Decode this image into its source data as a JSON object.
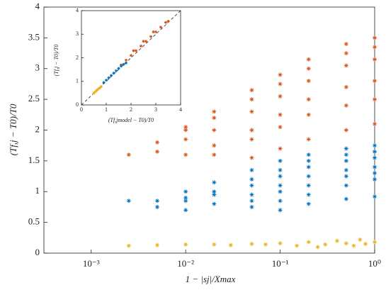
{
  "chart_data": [
    {
      "type": "scatter",
      "xscale": "log",
      "xlabel": "1 − |sj|/Xmax",
      "ylabel": "(Tf,j − T0)/T0",
      "xlim": [
        0.000316,
        1
      ],
      "ylim": [
        0,
        4
      ],
      "xticks": [
        {
          "value": 0.001,
          "label": "10⁻³"
        },
        {
          "value": 0.01,
          "label": "10⁻²"
        },
        {
          "value": 0.1,
          "label": "10⁻¹"
        },
        {
          "value": 1,
          "label": "10⁰"
        }
      ],
      "yticks": [
        0,
        0.5,
        1,
        1.5,
        2,
        2.5,
        3,
        3.5,
        4
      ],
      "series": [
        {
          "color": "#d95319",
          "x": [
            0.01,
            0.02,
            0.05,
            0.1,
            0.2,
            0.5,
            1,
            0.005,
            0.01,
            0.02,
            0.05,
            0.1,
            0.2,
            0.5,
            1,
            0.0025,
            0.005,
            0.01,
            0.02,
            0.05,
            0.1,
            0.2,
            0.5,
            1,
            0.01,
            0.02,
            0.05,
            0.1,
            0.2,
            0.5,
            1,
            0.02,
            0.05,
            0.1,
            0.2,
            0.5,
            1,
            0.05,
            0.1,
            0.2,
            0.5,
            1
          ],
          "values": [
            2.05,
            2.3,
            2.65,
            2.9,
            3.15,
            3.4,
            3.5,
            1.8,
            2.0,
            2.2,
            2.5,
            2.75,
            3.0,
            3.25,
            3.35,
            1.6,
            1.65,
            1.85,
            2.0,
            2.3,
            2.55,
            2.8,
            3.05,
            3.15,
            1.6,
            1.75,
            2.0,
            2.25,
            2.5,
            2.7,
            2.8,
            1.6,
            1.85,
            2.05,
            2.25,
            2.4,
            2.5,
            1.55,
            1.7,
            1.85,
            2.0,
            2.1
          ]
        },
        {
          "color": "#0072bd",
          "x": [
            0.0025,
            0.005,
            0.01,
            0.02,
            0.05,
            0.1,
            0.2,
            0.5,
            1,
            0.01,
            0.02,
            0.05,
            0.1,
            0.2,
            0.5,
            1,
            0.005,
            0.01,
            0.02,
            0.05,
            0.1,
            0.2,
            0.5,
            1,
            0.02,
            0.05,
            0.1,
            0.2,
            0.5,
            1,
            0.01,
            0.05,
            0.1,
            0.2,
            0.5,
            1,
            0.05,
            0.1,
            0.2,
            0.5,
            1,
            0.1,
            0.2,
            0.5,
            1
          ],
          "values": [
            0.85,
            0.85,
            1.0,
            1.15,
            1.35,
            1.5,
            1.6,
            1.7,
            1.75,
            0.9,
            1.0,
            1.2,
            1.35,
            1.5,
            1.6,
            1.65,
            0.75,
            0.85,
            0.95,
            1.1,
            1.25,
            1.4,
            1.5,
            1.55,
            0.8,
            0.95,
            1.1,
            1.25,
            1.35,
            1.4,
            0.7,
            0.85,
            1.0,
            1.1,
            1.25,
            1.3,
            0.75,
            0.85,
            0.95,
            1.1,
            1.2,
            0.7,
            0.8,
            0.88,
            0.92
          ]
        },
        {
          "color": "#edb120",
          "x": [
            0.0025,
            0.005,
            0.01,
            0.02,
            0.03,
            0.05,
            0.07,
            0.1,
            0.15,
            0.2,
            0.3,
            0.4,
            0.5,
            0.7,
            1,
            0.25,
            0.6,
            0.8
          ],
          "values": [
            0.12,
            0.13,
            0.14,
            0.14,
            0.13,
            0.15,
            0.14,
            0.16,
            0.12,
            0.18,
            0.14,
            0.2,
            0.16,
            0.22,
            0.18,
            0.1,
            0.12,
            0.15
          ]
        }
      ]
    },
    {
      "type": "scatter",
      "xscale": "linear",
      "xlabel": "(Tf,jmodel − T0)/T0",
      "ylabel": "(Tf,j − T0)/T0",
      "xlim": [
        0,
        4
      ],
      "ylim": [
        0,
        4
      ],
      "xticks": [
        0,
        1,
        2,
        3,
        4
      ],
      "yticks": [
        0,
        1,
        2,
        3,
        4
      ],
      "series": [
        {
          "color": "#d95319",
          "x": [
            1.6,
            1.8,
            2.0,
            2.2,
            2.4,
            2.6,
            2.8,
            3.0,
            3.2,
            3.4,
            3.5,
            2.1,
            2.5,
            2.9
          ],
          "values": [
            1.7,
            1.9,
            2.1,
            2.3,
            2.5,
            2.7,
            2.9,
            3.1,
            3.3,
            3.5,
            3.55,
            2.3,
            2.7,
            3.1
          ]
        },
        {
          "color": "#0072bd",
          "x": [
            0.9,
            1.0,
            1.1,
            1.2,
            1.3,
            1.4,
            1.5,
            1.6,
            1.7,
            1.8
          ],
          "values": [
            0.95,
            1.05,
            1.15,
            1.25,
            1.35,
            1.45,
            1.55,
            1.65,
            1.72,
            1.78
          ]
        },
        {
          "color": "#edb120",
          "x": [
            0.5,
            0.55,
            0.6,
            0.65,
            0.7,
            0.75,
            0.8
          ],
          "values": [
            0.5,
            0.55,
            0.6,
            0.65,
            0.7,
            0.73,
            0.78
          ]
        }
      ]
    }
  ]
}
